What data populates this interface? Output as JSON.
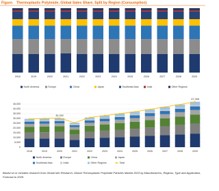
{
  "figure_label": "Figure.",
  "source": "Based on or includes research from Global Info Research: Global Thermoplastic Polyimide Particles Market 2023 by Manufacturers, Regions, Type and Application, Forecast to 2029.",
  "chart_data": [
    {
      "type": "bar",
      "stacked": true,
      "title": "Thermoplastic Polyimide, Global Sales Share, Split by Region (Consumption)",
      "categories": [
        "2018",
        "2019",
        "2020",
        "2021",
        "2022",
        "2023",
        "2024",
        "2025",
        "2026",
        "2027",
        "2028",
        "2029"
      ],
      "series": [
        {
          "name": "North America",
          "color": "#1f3a6e",
          "values": [
            29,
            29,
            29,
            30,
            29,
            29,
            29,
            29,
            29,
            29,
            29,
            29
          ]
        },
        {
          "name": "Europe",
          "color": "#8c8c8c",
          "values": [
            23,
            23,
            23,
            22,
            23,
            23,
            23,
            23,
            23,
            23,
            23,
            23
          ]
        },
        {
          "name": "China",
          "color": "#2e75b6",
          "values": [
            21,
            21,
            21,
            21,
            21,
            21,
            21,
            21,
            21,
            21,
            21,
            21
          ]
        },
        {
          "name": "Japan",
          "color": "#ffc000",
          "values": [
            10,
            10,
            10,
            10,
            10,
            10,
            10,
            10,
            10,
            10,
            10,
            10
          ]
        },
        {
          "name": "Southeast Asia",
          "color": "#264478",
          "values": [
            12,
            12,
            12,
            12,
            12,
            12,
            12,
            12,
            12,
            12,
            12,
            12
          ]
        },
        {
          "name": "India",
          "color": "#9e2a2b",
          "values": [
            2,
            2,
            2,
            2,
            2,
            2,
            2,
            2,
            2,
            2,
            2,
            2
          ]
        },
        {
          "name": "Other Regions",
          "color": "#1d2f55",
          "values": [
            3,
            3,
            3,
            3,
            3,
            3,
            3,
            3,
            3,
            3,
            3,
            3
          ]
        }
      ]
    },
    {
      "type": "bar",
      "stacked": true,
      "grid": true,
      "categories": [
        "2018",
        "2019",
        "2020",
        "2021",
        "2022",
        "2023",
        "2024",
        "2025",
        "2026",
        "2027",
        "2028",
        "2029"
      ],
      "ylim": [
        0,
        50000
      ],
      "yticks": [
        0,
        {
          "value": 5000,
          "label": "5,000"
        },
        {
          "value": 10000,
          "label": "10,000"
        },
        {
          "value": 15000,
          "label": "15,000"
        },
        {
          "value": 20000,
          "label": "20,000"
        },
        {
          "value": 25000,
          "label": "25,000"
        },
        {
          "value": 30000,
          "label": "30,000"
        },
        {
          "value": 35000,
          "label": "35,000"
        },
        {
          "value": 40000,
          "label": "40,000"
        },
        {
          "value": 45000,
          "label": "45,000"
        }
      ],
      "series": [
        {
          "name": "North America",
          "color": "#1f3a6e",
          "values": [
            8900,
            9000,
            9100,
            7700,
            9300,
            9900,
            10500,
            11100,
            11800,
            12600,
            13300,
            14200
          ]
        },
        {
          "name": "Europe",
          "color": "#7f7f7f",
          "values": [
            6500,
            6600,
            6700,
            5600,
            6800,
            7300,
            7700,
            8100,
            8700,
            9200,
            9800,
            10400
          ]
        },
        {
          "name": "China",
          "color": "#548235",
          "values": [
            5900,
            6000,
            6100,
            5100,
            6200,
            6600,
            7000,
            7400,
            7900,
            8400,
            8900,
            9500
          ]
        },
        {
          "name": "Japan",
          "color": "#a5a5a5",
          "values": [
            3000,
            3000,
            3000,
            2600,
            3100,
            3300,
            3500,
            3700,
            4000,
            4200,
            4500,
            4700
          ]
        },
        {
          "name": "Southeast Asia",
          "color": "#2e75b6",
          "values": [
            2400,
            2400,
            2400,
            2000,
            2500,
            2600,
            2800,
            3000,
            3200,
            3400,
            3600,
            3800
          ]
        },
        {
          "name": "India",
          "color": "#c9c9c9",
          "values": [
            900,
            900,
            900,
            800,
            900,
            1000,
            1100,
            1100,
            1200,
            1300,
            1300,
            1400
          ]
        },
        {
          "name": "Other Regions",
          "color": "#9dc3e6",
          "values": [
            1900,
            2000,
            2100,
            1700,
            2200,
            2300,
            2400,
            2600,
            2700,
            2900,
            3100,
            3400
          ]
        },
        {
          "name": "Total",
          "type": "line",
          "color": "#ffc000",
          "values": [
            29500,
            30000,
            30392,
            25500,
            31000,
            33000,
            35000,
            37000,
            39500,
            42000,
            44500,
            47398
          ],
          "value_labels": [
            null,
            null,
            "30,392",
            null,
            null,
            null,
            null,
            null,
            null,
            null,
            null,
            "47,398"
          ]
        }
      ]
    }
  ]
}
